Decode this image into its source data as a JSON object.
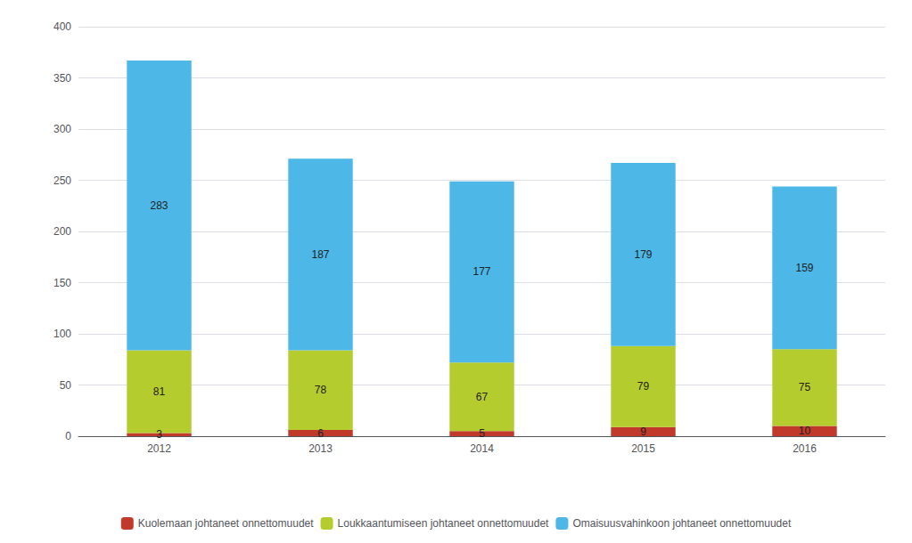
{
  "chart_data": {
    "type": "bar",
    "stacked": true,
    "categories": [
      "2012",
      "2013",
      "2014",
      "2015",
      "2016"
    ],
    "series": [
      {
        "name": "Kuolemaan johtaneet onnettomuudet",
        "color": "#c0392b",
        "values": [
          3,
          6,
          5,
          9,
          10
        ]
      },
      {
        "name": "Loukkaantumiseen johtaneet onnettomuudet",
        "color": "#b5cc2e",
        "values": [
          81,
          78,
          67,
          79,
          75
        ]
      },
      {
        "name": "Omaisuusvahinkoon johtaneet onnettomuudet",
        "color": "#4db8e8",
        "values": [
          283,
          187,
          177,
          179,
          159
        ]
      }
    ],
    "ylim": [
      0,
      400
    ],
    "yticks": [
      0,
      50,
      100,
      150,
      200,
      250,
      300,
      350,
      400
    ],
    "grid": true,
    "data_labels": true,
    "legend": "bottom"
  }
}
